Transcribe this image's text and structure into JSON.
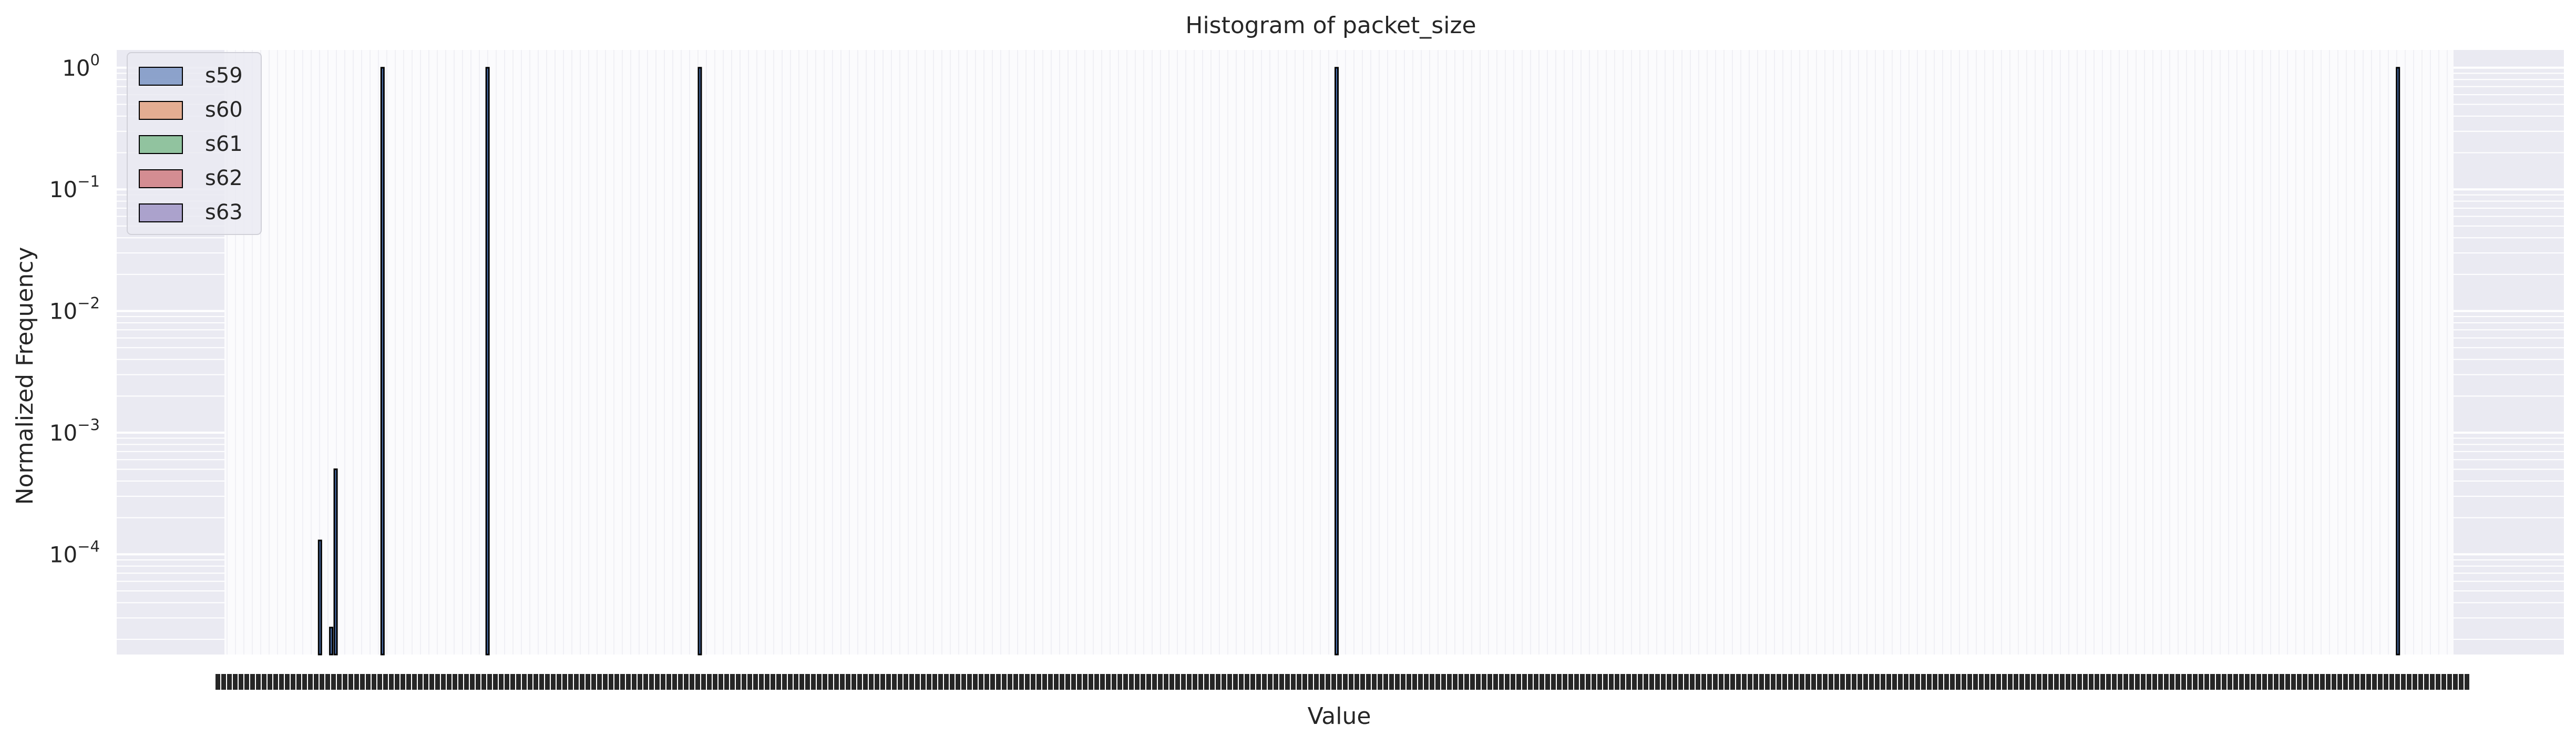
{
  "chart_data": {
    "type": "bar",
    "title": "Histogram of packet_size",
    "xlabel": "Value",
    "ylabel": "Normalized Frequency",
    "yscale": "log",
    "ylim": [
      1.5e-05,
      1.4
    ],
    "yticks": [
      {
        "value": 1,
        "base": "10",
        "exp": "0"
      },
      {
        "value": 0.1,
        "base": "10",
        "exp": "−1"
      },
      {
        "value": 0.01,
        "base": "10",
        "exp": "−2"
      },
      {
        "value": 0.001,
        "base": "10",
        "exp": "−3"
      },
      {
        "value": 0.0001,
        "base": "10",
        "exp": "−4"
      }
    ],
    "xlim": [
      0,
      1000
    ],
    "grid": true,
    "legend_position": "upper-left",
    "series": [
      {
        "name": "s59",
        "color": "#4c72b0"
      },
      {
        "name": "s60",
        "color": "#dd8452"
      },
      {
        "name": "s61",
        "color": "#55a868"
      },
      {
        "name": "s62",
        "color": "#c44e52"
      },
      {
        "name": "s63",
        "color": "#8172b3"
      }
    ],
    "bars": [
      {
        "x": 45,
        "value": 0.00013
      },
      {
        "x": 50,
        "value": 2.5e-05
      },
      {
        "x": 52,
        "value": 0.0005
      },
      {
        "x": 73,
        "value": 1
      },
      {
        "x": 120,
        "value": 1
      },
      {
        "x": 215,
        "value": 1
      },
      {
        "x": 500,
        "value": 1
      },
      {
        "x": 975,
        "value": 1
      }
    ],
    "x_tick_note": "x-axis tick labels are dense and overlap into an illegible band"
  }
}
